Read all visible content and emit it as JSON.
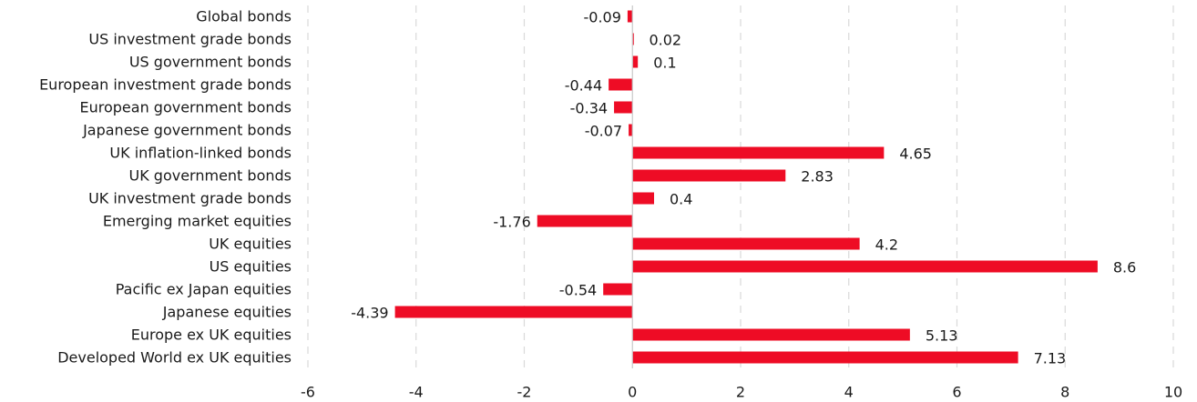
{
  "chart_data": {
    "type": "bar",
    "orientation": "horizontal",
    "categories": [
      "Global bonds",
      "US investment grade bonds",
      "US government bonds",
      "European investment grade bonds",
      "European government bonds",
      "Japanese government bonds",
      "UK inflation-linked bonds",
      "UK government bonds",
      "UK investment grade bonds",
      "Emerging market equities",
      "UK equities",
      "US equities",
      "Pacific ex Japan equities",
      "Japanese equities",
      "Europe ex UK equities",
      "Developed World ex UK equities"
    ],
    "values": [
      -0.09,
      0.02,
      0.1,
      -0.44,
      -0.34,
      -0.07,
      4.65,
      2.83,
      0.4,
      -1.76,
      4.2,
      8.6,
      -0.54,
      -4.39,
      5.13,
      7.13
    ],
    "value_labels": [
      "-0.09",
      "0.02",
      "0.1",
      "-0.44",
      "-0.34",
      "-0.07",
      "4.65",
      "2.83",
      "0.4",
      "-1.76",
      "4.2",
      "8.6",
      "-0.54",
      "-4.39",
      "5.13",
      "7.13"
    ],
    "xlim": [
      -6,
      10
    ],
    "xticks": [
      -6,
      -4,
      -2,
      0,
      2,
      4,
      6,
      8,
      10
    ],
    "xtick_labels": [
      "-6",
      "-4",
      "-2",
      "0",
      "2",
      "4",
      "6",
      "8",
      "10"
    ],
    "grid": "vertical-dashed",
    "bar_color": "#ee0c25",
    "grid_color": "#d9d9d9",
    "axis_color": "#c8c8c8",
    "title": "",
    "xlabel": "",
    "ylabel": ""
  }
}
